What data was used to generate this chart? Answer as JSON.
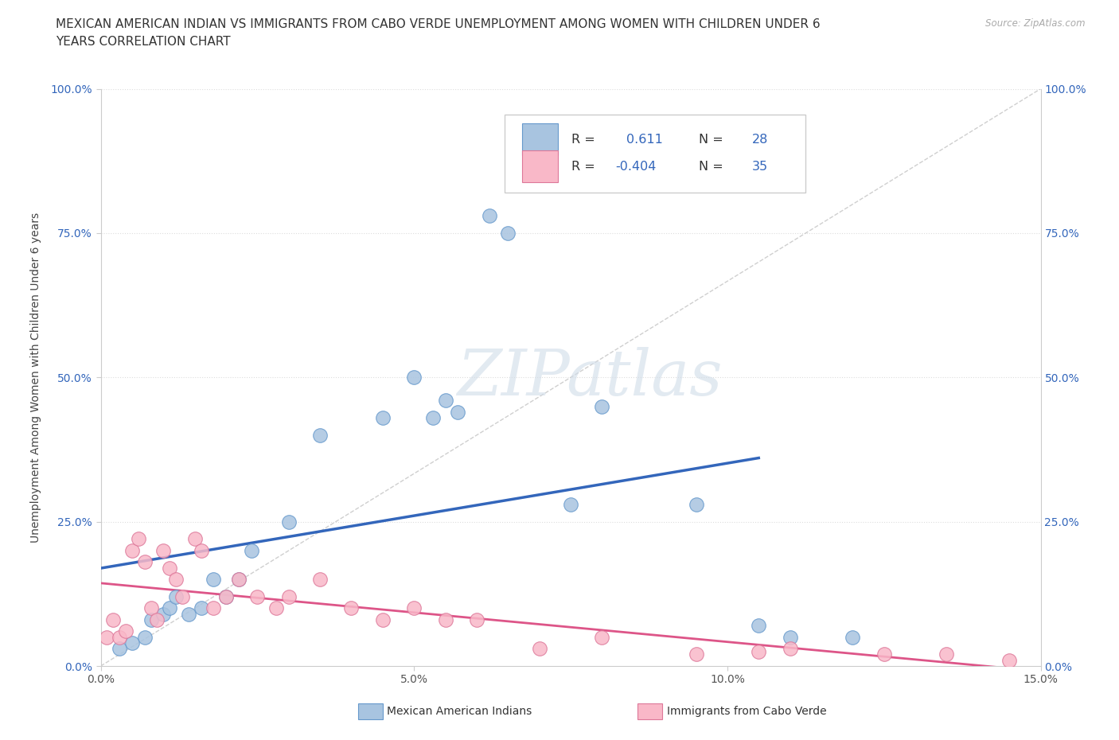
{
  "title_line1": "MEXICAN AMERICAN INDIAN VS IMMIGRANTS FROM CABO VERDE UNEMPLOYMENT AMONG WOMEN WITH CHILDREN UNDER 6",
  "title_line2": "YEARS CORRELATION CHART",
  "source": "Source: ZipAtlas.com",
  "ylabel": "Unemployment Among Women with Children Under 6 years",
  "xlim": [
    0.0,
    15.0
  ],
  "ylim": [
    0.0,
    100.0
  ],
  "xticks": [
    0.0,
    5.0,
    10.0,
    15.0
  ],
  "yticks": [
    0.0,
    25.0,
    50.0,
    75.0,
    100.0
  ],
  "watermark": "ZIPatlas",
  "blue_R": 0.611,
  "blue_N": 28,
  "pink_R": -0.404,
  "pink_N": 35,
  "blue_marker_color": "#a8c4e0",
  "blue_edge_color": "#6699cc",
  "blue_line_color": "#3366bb",
  "pink_marker_color": "#f9b8c8",
  "pink_edge_color": "#dd7799",
  "pink_line_color": "#dd5588",
  "ref_line_color": "#bbbbbb",
  "legend_blue_label": "Mexican American Indians",
  "legend_pink_label": "Immigrants from Cabo Verde",
  "blue_scatter_x": [
    0.3,
    0.5,
    0.7,
    0.8,
    1.0,
    1.1,
    1.2,
    1.4,
    1.6,
    1.8,
    2.0,
    2.2,
    2.4,
    3.0,
    3.5,
    4.5,
    5.0,
    5.3,
    5.5,
    5.7,
    6.2,
    6.5,
    7.5,
    8.0,
    9.5,
    10.5,
    11.0,
    12.0
  ],
  "blue_scatter_y": [
    3.0,
    4.0,
    5.0,
    8.0,
    9.0,
    10.0,
    12.0,
    9.0,
    10.0,
    15.0,
    12.0,
    15.0,
    20.0,
    25.0,
    40.0,
    43.0,
    50.0,
    43.0,
    46.0,
    44.0,
    78.0,
    75.0,
    28.0,
    45.0,
    28.0,
    7.0,
    5.0,
    5.0
  ],
  "pink_scatter_x": [
    0.1,
    0.2,
    0.3,
    0.4,
    0.5,
    0.6,
    0.7,
    0.8,
    0.9,
    1.0,
    1.1,
    1.2,
    1.3,
    1.5,
    1.6,
    1.8,
    2.0,
    2.2,
    2.5,
    2.8,
    3.0,
    3.5,
    4.0,
    4.5,
    5.0,
    5.5,
    6.0,
    7.0,
    8.0,
    9.5,
    10.5,
    11.0,
    12.5,
    13.5,
    14.5
  ],
  "pink_scatter_y": [
    5.0,
    8.0,
    5.0,
    6.0,
    20.0,
    22.0,
    18.0,
    10.0,
    8.0,
    20.0,
    17.0,
    15.0,
    12.0,
    22.0,
    20.0,
    10.0,
    12.0,
    15.0,
    12.0,
    10.0,
    12.0,
    15.0,
    10.0,
    8.0,
    10.0,
    8.0,
    8.0,
    3.0,
    5.0,
    2.0,
    2.5,
    3.0,
    2.0,
    2.0,
    1.0
  ],
  "grid_color": "#dddddd",
  "grid_style": "dotted",
  "background_color": "#ffffff",
  "title_fontsize": 11,
  "axis_label_fontsize": 10,
  "tick_fontsize": 10,
  "watermark_color": "#d0dce8",
  "watermark_alpha": 0.6
}
